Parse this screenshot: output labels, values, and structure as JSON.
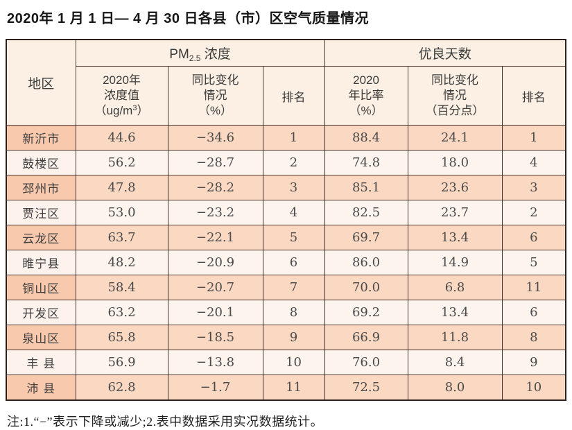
{
  "title": "2020年 1 月 1 日— 4 月 30 日各县（市）区空气质量情况",
  "note": "注:1.“−”表示下降或减少;2.表中数据采用实况数据统计。",
  "colors": {
    "border_outer": "#2e211b",
    "border_inner": "#47332a",
    "header_bg": "#fbf0e3",
    "odd_row_bg": "#fbd8c2",
    "odd_region_bg": "#f8c9ad",
    "even_row_bg": "#fdf4ee",
    "text": "#3b3b3b"
  },
  "table": {
    "header": {
      "region": "地区",
      "pm25_group": {
        "prefix": "PM",
        "sub": "2.5",
        "suffix": " 浓度"
      },
      "good_days_group": "优良天数",
      "pm25_value": {
        "l1": "2020年",
        "l2": "浓度值",
        "l3a": "（ug/m",
        "l3sup": "3",
        "l3b": "）"
      },
      "pm25_change": {
        "l1": "同比变化",
        "l2": "情况",
        "l3": "（%）"
      },
      "pm25_rank": "排名",
      "ratio": {
        "l1": "2020",
        "l2": "年比率",
        "l3": "（%）"
      },
      "ratio_change": {
        "l1": "同比变化",
        "l2": "情况",
        "l3": "（百分点）"
      },
      "ratio_rank": "排名"
    },
    "rows": [
      {
        "region": "新沂市",
        "pm25": "44.6",
        "pm25_change": "−34.6",
        "pm25_rank": "1",
        "ratio": "88.4",
        "ratio_change": "24.1",
        "ratio_rank": "1"
      },
      {
        "region": "鼓楼区",
        "pm25": "56.2",
        "pm25_change": "−28.7",
        "pm25_rank": "2",
        "ratio": "74.8",
        "ratio_change": "18.0",
        "ratio_rank": "4"
      },
      {
        "region": "邳州市",
        "pm25": "47.8",
        "pm25_change": "−28.2",
        "pm25_rank": "3",
        "ratio": "85.1",
        "ratio_change": "23.6",
        "ratio_rank": "3"
      },
      {
        "region": "贾汪区",
        "pm25": "53.0",
        "pm25_change": "−23.2",
        "pm25_rank": "4",
        "ratio": "82.5",
        "ratio_change": "23.7",
        "ratio_rank": "2"
      },
      {
        "region": "云龙区",
        "pm25": "63.7",
        "pm25_change": "−22.1",
        "pm25_rank": "5",
        "ratio": "69.7",
        "ratio_change": "13.4",
        "ratio_rank": "6"
      },
      {
        "region": "睢宁县",
        "pm25": "48.2",
        "pm25_change": "−20.9",
        "pm25_rank": "6",
        "ratio": "86.0",
        "ratio_change": "14.9",
        "ratio_rank": "5"
      },
      {
        "region": "铜山区",
        "pm25": "58.4",
        "pm25_change": "−20.7",
        "pm25_rank": "7",
        "ratio": "70.0",
        "ratio_change": "6.8",
        "ratio_rank": "11"
      },
      {
        "region": "开发区",
        "pm25": "63.2",
        "pm25_change": "−20.1",
        "pm25_rank": "8",
        "ratio": "69.2",
        "ratio_change": "13.4",
        "ratio_rank": "6"
      },
      {
        "region": "泉山区",
        "pm25": "65.8",
        "pm25_change": "−18.5",
        "pm25_rank": "9",
        "ratio": "66.9",
        "ratio_change": "11.8",
        "ratio_rank": "8"
      },
      {
        "region": "丰 县",
        "pm25": "56.9",
        "pm25_change": "−13.8",
        "pm25_rank": "10",
        "ratio": "76.0",
        "ratio_change": "8.4",
        "ratio_rank": "9"
      },
      {
        "region": "沛 县",
        "pm25": "62.8",
        "pm25_change": "−1.7",
        "pm25_rank": "11",
        "ratio": "72.5",
        "ratio_change": "8.0",
        "ratio_rank": "10"
      }
    ]
  },
  "chart_data": {
    "type": "table",
    "title": "2020年1月1日—4月30日各县（市）区空气质量情况",
    "column_groups": [
      "地区",
      "PM2.5浓度",
      "优良天数"
    ],
    "columns": [
      "地区",
      "PM2.5浓度 2020年浓度值（ug/m3）",
      "PM2.5浓度 同比变化情况（%）",
      "PM2.5浓度 排名",
      "优良天数 2020年比率（%）",
      "优良天数 同比变化情况（百分点）",
      "优良天数 排名"
    ],
    "rows": [
      [
        "新沂市",
        44.6,
        -34.6,
        1,
        88.4,
        24.1,
        1
      ],
      [
        "鼓楼区",
        56.2,
        -28.7,
        2,
        74.8,
        18.0,
        4
      ],
      [
        "邳州市",
        47.8,
        -28.2,
        3,
        85.1,
        23.6,
        3
      ],
      [
        "贾汪区",
        53.0,
        -23.2,
        4,
        82.5,
        23.7,
        2
      ],
      [
        "云龙区",
        63.7,
        -22.1,
        5,
        69.7,
        13.4,
        6
      ],
      [
        "睢宁县",
        48.2,
        -20.9,
        6,
        86.0,
        14.9,
        5
      ],
      [
        "铜山区",
        58.4,
        -20.7,
        7,
        70.0,
        6.8,
        11
      ],
      [
        "开发区",
        63.2,
        -20.1,
        8,
        69.2,
        13.4,
        6
      ],
      [
        "泉山区",
        65.8,
        -18.5,
        9,
        66.9,
        11.8,
        8
      ],
      [
        "丰县",
        56.9,
        -13.8,
        10,
        76.0,
        8.4,
        9
      ],
      [
        "沛县",
        62.8,
        -1.7,
        11,
        72.5,
        8.0,
        10
      ]
    ],
    "note": "注:1.“−”表示下降或减少;2.表中数据采用实况数据统计。"
  }
}
